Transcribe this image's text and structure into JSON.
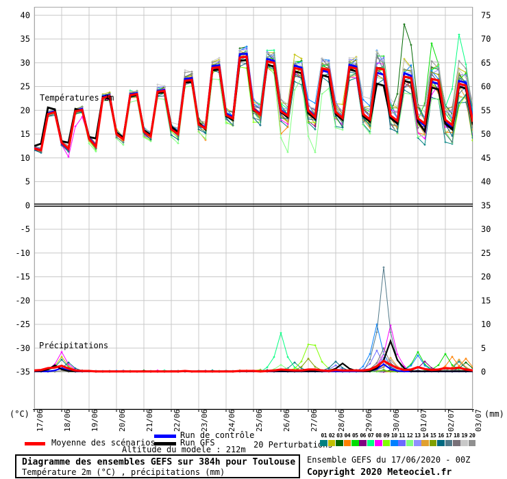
{
  "labels": {
    "temperature_label": "Températures 2m",
    "precipitation_label": "Précipitations",
    "unit_left": "(°C)",
    "unit_right": "(mm)",
    "altitude_note": "Altitude du modele : 212m",
    "box_title": "Diagramme des ensembles GEFS sur 384h pour Toulouse",
    "box_subtitle": "Température 2m (°C) , précipitations (mm)",
    "run_info": "Ensemble GEFS du 17/06/2020 - 00Z",
    "copyright": "Copyright 2020 Meteociel.fr"
  },
  "legend": {
    "mean": {
      "label": "Moyenne des scénarios",
      "color": "#FF0000"
    },
    "control": {
      "label": "Run de contrôle",
      "color": "#0000FF"
    },
    "gfs": {
      "label": "Run GFS",
      "color": "#000000"
    },
    "perturbations_label": "20 Perturbations",
    "members": [
      {
        "id": "01",
        "color": "#008080"
      },
      {
        "id": "02",
        "color": "#C0C000"
      },
      {
        "id": "03",
        "color": "#006800"
      },
      {
        "id": "04",
        "color": "#FF8000"
      },
      {
        "id": "05",
        "color": "#00DD00"
      },
      {
        "id": "06",
        "color": "#800080"
      },
      {
        "id": "07",
        "color": "#00FF80"
      },
      {
        "id": "08",
        "color": "#FF00FF"
      },
      {
        "id": "09",
        "color": "#80FF00"
      },
      {
        "id": "10",
        "color": "#0080FF"
      },
      {
        "id": "11",
        "color": "#6A6AFF"
      },
      {
        "id": "12",
        "color": "#80FF80"
      },
      {
        "id": "13",
        "color": "#9090FF"
      },
      {
        "id": "14",
        "color": "#E0A030"
      },
      {
        "id": "15",
        "color": "#80A000"
      },
      {
        "id": "16",
        "color": "#006880"
      },
      {
        "id": "17",
        "color": "#507888"
      },
      {
        "id": "18",
        "color": "#787078"
      },
      {
        "id": "19",
        "color": "#C8C8C8"
      },
      {
        "id": "20",
        "color": "#909090"
      }
    ]
  },
  "chart_data": {
    "type": "line",
    "title": "Diagramme des ensembles GEFS sur 384h pour Toulouse",
    "x_tick_labels": [
      "17/06",
      "18/06",
      "19/06",
      "20/06",
      "21/06",
      "22/06",
      "23/06",
      "24/06",
      "25/06",
      "26/06",
      "27/06",
      "28/06",
      "29/06",
      "30/06",
      "01/07",
      "02/07",
      "03/07"
    ],
    "hours_per_step": 6,
    "steps": 65,
    "y_left": {
      "unit": "°C",
      "ticks": [
        -35,
        -30,
        -25,
        -20,
        -15,
        -10,
        -5,
        0,
        5,
        10,
        15,
        20,
        25,
        30,
        35,
        40
      ]
    },
    "y_right": {
      "unit": "mm",
      "ticks": [
        0,
        5,
        10,
        15,
        20,
        25,
        30,
        35,
        40,
        45,
        50,
        55,
        60,
        65,
        70,
        75
      ]
    },
    "zero_line_c": 0,
    "series": {
      "mean_temp": [
        12.0,
        11.6,
        19.2,
        19.6,
        13.2,
        11.9,
        19.8,
        20.1,
        14.0,
        12.4,
        22.6,
        23.0,
        15.0,
        13.9,
        23.2,
        23.4,
        15.5,
        14.5,
        23.9,
        24.1,
        16.0,
        15.0,
        26.2,
        26.4,
        17.0,
        16.2,
        28.9,
        29.1,
        19.0,
        18.3,
        31.1,
        31.3,
        20.2,
        19.1,
        30.3,
        30.0,
        19.8,
        18.9,
        28.9,
        28.6,
        19.9,
        18.6,
        28.8,
        28.5,
        19.6,
        18.4,
        29.1,
        28.8,
        19.2,
        18.1,
        28.9,
        28.6,
        18.9,
        17.8,
        27.1,
        26.8,
        18.3,
        17.2,
        26.6,
        26.3,
        18.0,
        16.9,
        25.6,
        25.2,
        17.6
      ],
      "control_temp": [
        12.1,
        11.7,
        19.4,
        19.8,
        13.0,
        11.8,
        20.0,
        20.3,
        14.2,
        12.6,
        22.9,
        23.2,
        15.1,
        14.0,
        23.4,
        23.6,
        15.6,
        14.6,
        24.1,
        24.3,
        16.2,
        15.2,
        26.6,
        26.8,
        17.2,
        16.4,
        29.3,
        29.5,
        19.3,
        18.6,
        31.8,
        31.9,
        20.4,
        19.3,
        30.8,
        30.4,
        20.0,
        19.0,
        29.4,
        29.0,
        20.1,
        18.8,
        28.4,
        28.0,
        19.4,
        18.2,
        29.6,
        29.2,
        19.0,
        17.9,
        27.9,
        27.5,
        18.6,
        17.5,
        27.8,
        27.3,
        18.0,
        16.8,
        26.0,
        25.6,
        17.6,
        16.4,
        26.2,
        25.8,
        18.0
      ],
      "gfs_temp": [
        12.5,
        13.0,
        20.6,
        20.2,
        13.5,
        13.2,
        20.3,
        19.9,
        14.4,
        14.1,
        22.8,
        22.4,
        15.3,
        14.3,
        23.0,
        23.2,
        15.8,
        14.8,
        23.6,
        23.8,
        16.6,
        15.4,
        25.8,
        26.0,
        17.4,
        16.0,
        28.4,
        28.6,
        18.8,
        18.0,
        30.4,
        30.6,
        20.0,
        19.2,
        29.6,
        29.2,
        19.6,
        18.6,
        28.2,
        27.8,
        19.4,
        18.2,
        27.4,
        27.0,
        19.2,
        18.0,
        28.6,
        28.2,
        18.8,
        17.6,
        25.6,
        25.2,
        18.4,
        17.2,
        26.2,
        25.8,
        17.6,
        15.6,
        24.8,
        24.4,
        17.2,
        16.0,
        25.0,
        24.6,
        17.0
      ],
      "mean_precip": [
        0.3,
        0.4,
        0.8,
        0.9,
        1.3,
        0.7,
        0.3,
        0.2,
        0.2,
        0.1,
        0.1,
        0.1,
        0.1,
        0.1,
        0.1,
        0.1,
        0.1,
        0.1,
        0.1,
        0.1,
        0.1,
        0.1,
        0.2,
        0.1,
        0.1,
        0.1,
        0.1,
        0.1,
        0.1,
        0.1,
        0.2,
        0.2,
        0.2,
        0.1,
        0.2,
        0.3,
        0.5,
        0.4,
        0.3,
        0.3,
        0.5,
        0.5,
        0.3,
        0.2,
        0.4,
        0.3,
        0.3,
        0.3,
        0.3,
        0.5,
        1.2,
        2.3,
        1.5,
        0.8,
        0.4,
        0.5,
        1.0,
        0.6,
        0.4,
        0.5,
        0.8,
        0.7,
        0.9,
        0.5,
        0.3
      ]
    },
    "precip_events": [
      {
        "series": "gfs",
        "step": 3,
        "peak": 1.4
      },
      {
        "series": "gfs",
        "step": 45,
        "peak": 1.8
      },
      {
        "series": "gfs",
        "step": 52,
        "peak": 6.5
      },
      {
        "series": "control",
        "step": 4,
        "peak": 0.8
      },
      {
        "series": "control",
        "step": 51,
        "peak": 1.6
      },
      {
        "series": "m01",
        "step": 4,
        "peak": 2.6
      },
      {
        "series": "m01",
        "step": 38,
        "peak": 2.0
      },
      {
        "series": "m01",
        "step": 62,
        "peak": 2.2
      },
      {
        "series": "m02",
        "step": 4,
        "peak": 3.2
      },
      {
        "series": "m03",
        "step": 63,
        "peak": 2.0
      },
      {
        "series": "m04",
        "step": 61,
        "peak": 3.2
      },
      {
        "series": "m04",
        "step": 63,
        "peak": 2.8
      },
      {
        "series": "m05",
        "step": 56,
        "peak": 4.2
      },
      {
        "series": "m05",
        "step": 60,
        "peak": 3.8
      },
      {
        "series": "m06",
        "step": 57,
        "peak": 2.2
      },
      {
        "series": "m07",
        "step": 36,
        "peak": 8.2
      },
      {
        "series": "m08",
        "step": 4,
        "peak": 4.2
      },
      {
        "series": "m08",
        "step": 52,
        "peak": 9.8
      },
      {
        "series": "m09",
        "step": 40,
        "peak": 5.8
      },
      {
        "series": "m09",
        "step": 41,
        "peak": 5.6
      },
      {
        "series": "m10",
        "step": 50,
        "peak": 10.0
      },
      {
        "series": "m10",
        "step": 56,
        "peak": 3.5
      },
      {
        "series": "m11",
        "step": 44,
        "peak": 1.4
      },
      {
        "series": "m11",
        "step": 50,
        "peak": 4.5
      },
      {
        "series": "m12",
        "step": 36,
        "peak": 1.5
      },
      {
        "series": "m13",
        "step": 51,
        "peak": 3.0
      },
      {
        "series": "m14",
        "step": 52,
        "peak": 3.0
      },
      {
        "series": "m14",
        "step": 62,
        "peak": 2.6
      },
      {
        "series": "m15",
        "step": 40,
        "peak": 2.8
      },
      {
        "series": "m16",
        "step": 5,
        "peak": 2.0
      },
      {
        "series": "m16",
        "step": 44,
        "peak": 2.2
      },
      {
        "series": "m16",
        "step": 51,
        "peak": 2.5
      },
      {
        "series": "m17",
        "step": 51,
        "peak": 22.0
      },
      {
        "series": "m18",
        "step": 51,
        "peak": 5.0
      },
      {
        "series": "m19",
        "step": 51,
        "peak": 4.0
      },
      {
        "series": "m20",
        "step": 52,
        "peak": 2.5
      }
    ],
    "temp_outliers": [
      {
        "series": "m03",
        "step": 54,
        "delta": 9.5
      },
      {
        "series": "m05",
        "step": 58,
        "delta": 8.0
      },
      {
        "series": "m07",
        "step": 62,
        "delta": 9.0
      },
      {
        "series": "m12",
        "step": 37,
        "delta": -5.5
      },
      {
        "series": "m12",
        "step": 41,
        "delta": -5.0
      },
      {
        "series": "m08",
        "step": 6,
        "delta": -3.2
      },
      {
        "series": "m04",
        "step": 25,
        "delta": -2.3
      },
      {
        "series": "m04",
        "step": 36,
        "delta": -3.4
      },
      {
        "series": "m19",
        "step": 22,
        "delta": 1.5
      },
      {
        "series": "m19",
        "step": 30,
        "delta": 1.5
      },
      {
        "series": "m17",
        "step": 50,
        "delta": 3.5
      }
    ]
  }
}
